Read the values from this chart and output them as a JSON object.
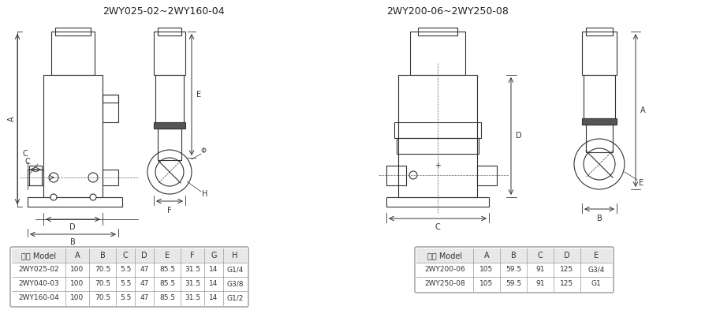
{
  "title1": "2WY025-02~2WY160-04",
  "title2": "2WY200-06~2WY250-08",
  "bg_color": "#ffffff",
  "table1_headers": [
    "型号 Model",
    "A",
    "B",
    "C",
    "D",
    "E",
    "F",
    "G",
    "H"
  ],
  "table1_rows": [
    [
      "2WY025-02",
      "100",
      "70.5",
      "5.5",
      "47",
      "85.5",
      "31.5",
      "14",
      "G1/4"
    ],
    [
      "2WY040-03",
      "100",
      "70.5",
      "5.5",
      "47",
      "85.5",
      "31.5",
      "14",
      "G3/8"
    ],
    [
      "2WY160-04",
      "100",
      "70.5",
      "5.5",
      "47",
      "85.5",
      "31.5",
      "14",
      "G1/2"
    ]
  ],
  "table2_headers": [
    "型号 Model",
    "A",
    "B",
    "C",
    "D",
    "E"
  ],
  "table2_rows": [
    [
      "2WY200-06",
      "105",
      "59.5",
      "91",
      "125",
      "G3/4"
    ],
    [
      "2WY250-08",
      "105",
      "59.5",
      "91",
      "125",
      "G1"
    ]
  ],
  "line_color": "#333333",
  "table_header_bg": "#e8e8e8",
  "table_border_color": "#999999"
}
